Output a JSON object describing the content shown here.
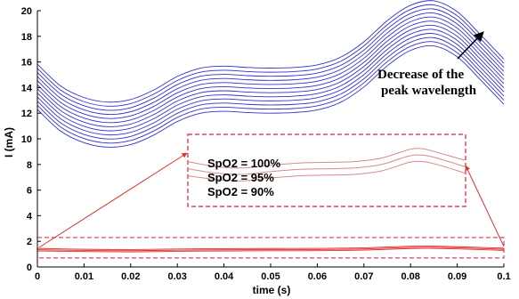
{
  "chart_data": {
    "type": "line",
    "title": "",
    "xlabel": "time (s)",
    "ylabel": "I (mA)",
    "xlim": [
      0,
      0.1
    ],
    "ylim": [
      0,
      20
    ],
    "xticks": [
      "0",
      "0.01",
      "0.02",
      "0.03",
      "0.04",
      "0.05",
      "0.06",
      "0.07",
      "0.08",
      "0.09",
      "0.1"
    ],
    "yticks": [
      "0",
      "2",
      "4",
      "6",
      "8",
      "10",
      "12",
      "14",
      "16",
      "18",
      "20"
    ],
    "grid": false,
    "blue_band": {
      "color": "#3333cc",
      "count": 12,
      "offset_step": 0.32,
      "base_curve": {
        "x": [
          0,
          0.005,
          0.01,
          0.015,
          0.02,
          0.025,
          0.03,
          0.035,
          0.04,
          0.045,
          0.05,
          0.055,
          0.06,
          0.065,
          0.07,
          0.075,
          0.08,
          0.085,
          0.09,
          0.095,
          0.1
        ],
        "y": [
          12.3,
          10.6,
          9.7,
          9.35,
          9.55,
          10.3,
          11.35,
          12.0,
          12.15,
          12.05,
          12.0,
          12.05,
          12.25,
          12.85,
          14.05,
          15.7,
          16.9,
          17.25,
          16.4,
          14.6,
          12.7
        ]
      }
    },
    "red_band": {
      "color": "#e03030",
      "series": [
        {
          "name": "SpO2 = 100%",
          "x": [
            0,
            0.01,
            0.02,
            0.03,
            0.04,
            0.05,
            0.06,
            0.07,
            0.08,
            0.085,
            0.09,
            0.1
          ],
          "y": [
            1.45,
            1.38,
            1.36,
            1.4,
            1.43,
            1.44,
            1.45,
            1.5,
            1.62,
            1.63,
            1.58,
            1.47
          ]
        },
        {
          "name": "SpO2 = 95%",
          "x": [
            0,
            0.01,
            0.02,
            0.03,
            0.04,
            0.05,
            0.06,
            0.07,
            0.08,
            0.085,
            0.09,
            0.1
          ],
          "y": [
            1.35,
            1.29,
            1.27,
            1.31,
            1.34,
            1.35,
            1.36,
            1.41,
            1.53,
            1.54,
            1.5,
            1.38
          ]
        },
        {
          "name": "SpO2 = 90%",
          "x": [
            0,
            0.01,
            0.02,
            0.03,
            0.04,
            0.05,
            0.06,
            0.07,
            0.08,
            0.085,
            0.09,
            0.1
          ],
          "y": [
            1.25,
            1.2,
            1.18,
            1.22,
            1.25,
            1.26,
            1.27,
            1.32,
            1.44,
            1.45,
            1.41,
            1.29
          ]
        }
      ]
    },
    "annotations": {
      "arrow_text_line1": "Decrease of the",
      "arrow_text_line2": "peak wavelength",
      "zoom_labels": [
        "SpO2 = 100%",
        "SpO2 = 95%",
        "SpO2 = 90%"
      ]
    },
    "zoom_box": {
      "color": "#d02040",
      "data_region": {
        "y_min": 0.7,
        "y_max": 2.3
      }
    }
  }
}
